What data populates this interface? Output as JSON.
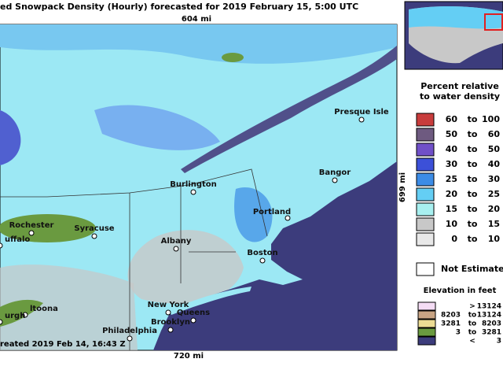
{
  "header": {
    "title": "ed Snowpack Density (Hourly) forecasted for 2019 February 15, 5:00 UTC"
  },
  "map": {
    "scale_top": "604 mi",
    "scale_bottom": "720 mi",
    "scale_right": "699 mi",
    "created": "reated 2019 Feb 14, 16:43 Z",
    "cities": [
      "Presque Isle",
      "Burlington",
      "Bangor",
      "Portland",
      "Rochester",
      "Syracuse",
      "uffalo",
      "Albany",
      "Boston",
      "New York",
      "Queens",
      "Brooklyn",
      "Philadelphia",
      "ltoona",
      "urgh"
    ]
  },
  "legend": {
    "density_title": [
      "Percent relative",
      "to water density"
    ],
    "density_rows": [
      {
        "cells": [
          "60",
          "to",
          "100"
        ],
        "color": "#c83c3c"
      },
      {
        "cells": [
          "50",
          "to",
          "60"
        ],
        "color": "#6e5a80"
      },
      {
        "cells": [
          "40",
          "to",
          "50"
        ],
        "color": "#7050c8"
      },
      {
        "cells": [
          "30",
          "to",
          "40"
        ],
        "color": "#3c50d8"
      },
      {
        "cells": [
          "25",
          "to",
          "30"
        ],
        "color": "#3c8ce6"
      },
      {
        "cells": [
          "20",
          "to",
          "25"
        ],
        "color": "#64cef4"
      },
      {
        "cells": [
          "15",
          "to",
          "20"
        ],
        "color": "#a8f0f0"
      },
      {
        "cells": [
          "10",
          "to",
          "15"
        ],
        "color": "#c8c8c8"
      },
      {
        "cells": [
          "0",
          "to",
          "10"
        ],
        "color": "#e8e8e8"
      }
    ],
    "not_estimated": "Not Estimate",
    "elevation_title": "Elevation in feet",
    "elevation_rows": [
      {
        "cells": [
          ">",
          "13124"
        ],
        "color": "#f4dcf4"
      },
      {
        "cells": [
          "8203",
          "to",
          "13124"
        ],
        "color": "#c8a484"
      },
      {
        "cells": [
          "3281",
          "to",
          "8203"
        ],
        "color": "#ecdc94"
      },
      {
        "cells": [
          "3",
          "to",
          "3281"
        ],
        "color": "#6a9a40"
      },
      {
        "cells": [
          "<",
          "3"
        ],
        "color": "#3c3c7c"
      }
    ]
  }
}
